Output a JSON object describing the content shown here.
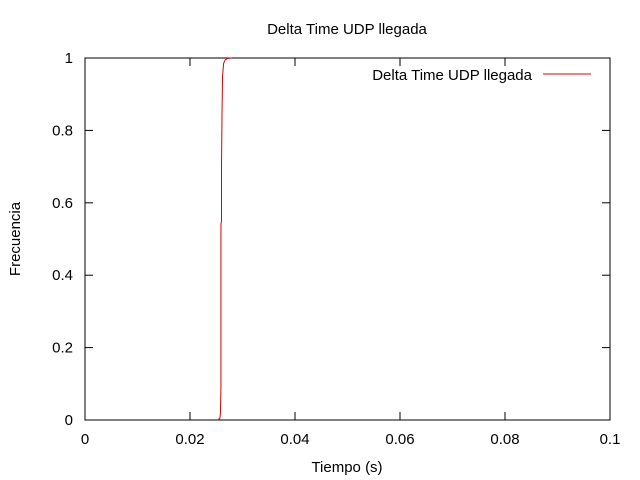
{
  "chart_data": {
    "type": "line",
    "title": "Delta Time UDP llegada",
    "xlabel": "Tiempo (s)",
    "ylabel": "Frecuencia",
    "xlim": [
      0,
      0.1
    ],
    "ylim": [
      0,
      1
    ],
    "x_ticks": [
      0,
      0.02,
      0.04,
      0.06,
      0.08,
      0.1
    ],
    "x_tick_labels": [
      "0",
      "0.02",
      "0.04",
      "0.06",
      "0.08",
      "0.1"
    ],
    "y_ticks": [
      0,
      0.2,
      0.4,
      0.6,
      0.8,
      1
    ],
    "y_tick_labels": [
      "0",
      "0.2",
      "0.4",
      "0.6",
      "0.8",
      "1"
    ],
    "grid": false,
    "legend_position": "top-right",
    "series": [
      {
        "name": "Delta Time UDP llegada",
        "color": "#e00000",
        "x": [
          0.0253,
          0.0257,
          0.0258,
          0.0259,
          0.0259,
          0.0259,
          0.026,
          0.026,
          0.0261,
          0.0262,
          0.0264,
          0.0267,
          0.0272,
          0.028
        ],
        "y": [
          0.0,
          0.005,
          0.02,
          0.1,
          0.3,
          0.54,
          0.55,
          0.7,
          0.85,
          0.95,
          0.985,
          0.995,
          0.999,
          1.0
        ]
      }
    ]
  }
}
